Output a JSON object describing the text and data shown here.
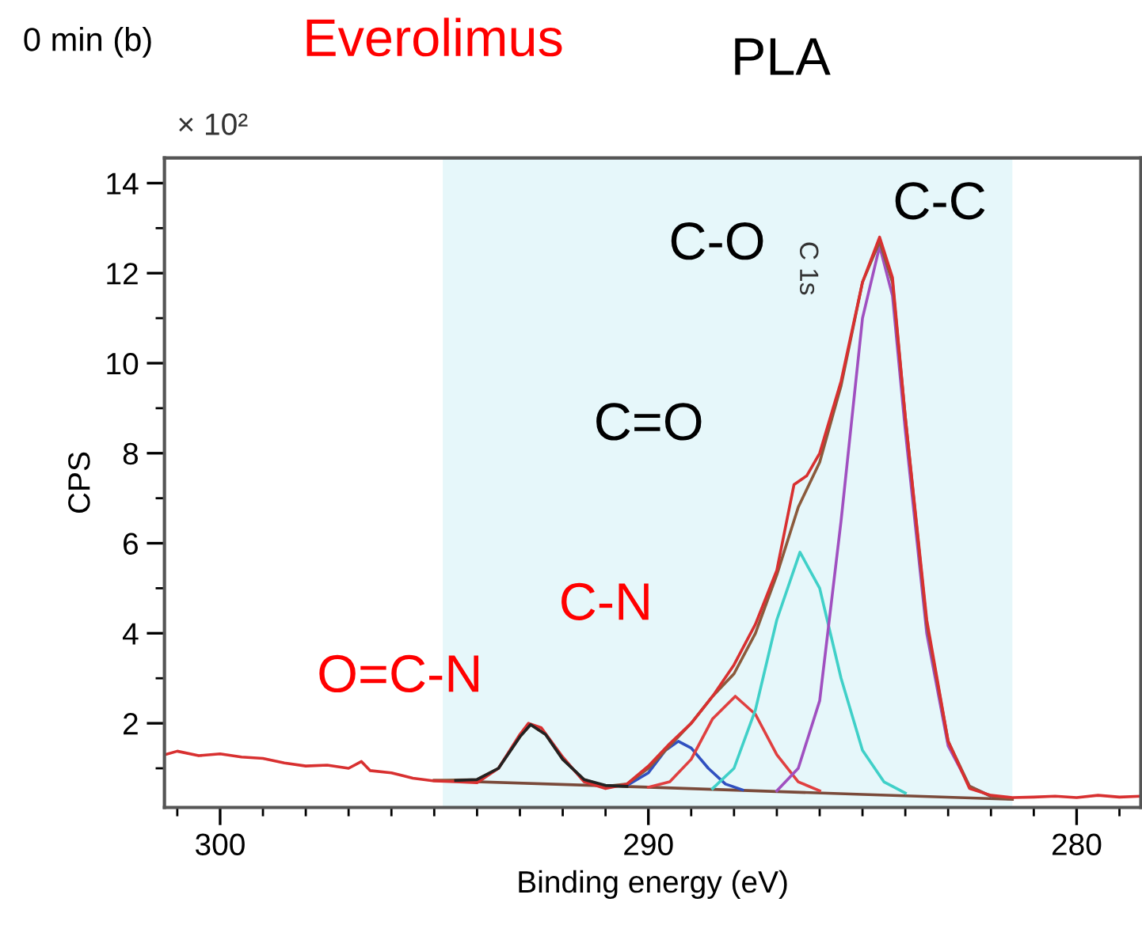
{
  "chart_data": {
    "type": "line",
    "title": "0 min (b)",
    "xlabel": "Binding energy (eV)",
    "ylabel": "CPS",
    "annotations": [
      "Everolimus",
      "PLA",
      "× 10²",
      "C-C",
      "C-O",
      "C 1s",
      "C=O",
      "C-N",
      "O=C-N"
    ],
    "xlim": [
      301.3,
      278.5
    ],
    "ylim": [
      0.13,
      14.56
    ],
    "xticks": [
      {
        "value": 301,
        "label": null
      },
      300,
      {
        "value": 299,
        "label": null
      },
      {
        "value": 298,
        "label": null
      },
      {
        "value": 297,
        "label": null
      },
      {
        "value": 296,
        "label": null
      },
      {
        "value": 295,
        "label": null
      },
      {
        "value": 294,
        "label": null
      },
      {
        "value": 293,
        "label": null
      },
      {
        "value": 292,
        "label": null
      },
      {
        "value": 291,
        "label": null
      },
      290,
      {
        "value": 289,
        "label": null
      },
      {
        "value": 288,
        "label": null
      },
      {
        "value": 287,
        "label": null
      },
      {
        "value": 286,
        "label": null
      },
      {
        "value": 285,
        "label": null
      },
      {
        "value": 284,
        "label": null
      },
      {
        "value": 283,
        "label": null
      },
      {
        "value": 282,
        "label": null
      },
      {
        "value": 281,
        "label": null
      },
      280,
      {
        "value": 279,
        "label": null
      }
    ],
    "yticks": [
      {
        "value": 1,
        "label": null
      },
      2,
      {
        "value": 3,
        "label": null
      },
      4,
      {
        "value": 5,
        "label": null
      },
      6,
      {
        "value": 7,
        "label": null
      },
      8,
      {
        "value": 9,
        "label": null
      },
      10,
      {
        "value": 11,
        "label": null
      },
      12,
      {
        "value": 13,
        "label": null
      },
      14
    ],
    "bands": [
      {
        "axis": "x",
        "from": 294.8,
        "to": 281.5,
        "color": "#e6f7fa"
      }
    ],
    "grid": false,
    "marker": "none",
    "line_style": "solid",
    "series": [
      {
        "color": "#7a4a3a",
        "x": [
          295,
          290,
          285,
          281.5
        ],
        "values": [
          0.73,
          0.58,
          0.42,
          0.31
        ]
      },
      {
        "color": "#3050c0",
        "x": [
          291,
          290.5,
          290,
          289.6,
          289.3,
          289,
          288.6,
          288.2,
          287.8
        ],
        "values": [
          0.6,
          0.62,
          0.9,
          1.4,
          1.6,
          1.45,
          1.0,
          0.65,
          0.52
        ]
      },
      {
        "color": "#e04040",
        "x": [
          290,
          289.5,
          289,
          288.5,
          287.97,
          287.5,
          287,
          286.5,
          286
        ],
        "values": [
          0.58,
          0.7,
          1.2,
          2.1,
          2.6,
          2.2,
          1.3,
          0.7,
          0.5
        ]
      },
      {
        "color": "#40d0c8",
        "x": [
          288.5,
          288,
          287.5,
          287,
          286.46,
          286,
          285.5,
          285,
          284.5,
          284
        ],
        "values": [
          0.55,
          1.0,
          2.3,
          4.3,
          5.8,
          5.0,
          3.0,
          1.4,
          0.7,
          0.45
        ]
      },
      {
        "color": "#a050c0",
        "x": [
          287,
          286.5,
          286,
          285.5,
          285,
          284.6,
          284.3,
          284,
          283.5,
          283,
          282.5,
          282
        ],
        "values": [
          0.5,
          1.0,
          2.5,
          6.5,
          11.0,
          12.6,
          11.5,
          8.5,
          4.0,
          1.5,
          0.6,
          0.38
        ]
      },
      {
        "color": "#8b5a3c",
        "x": [
          295,
          294,
          293.5,
          293,
          292.75,
          292.4,
          292,
          291.5,
          291,
          290.5,
          290,
          289.5,
          289,
          288.5,
          288,
          287.5,
          287,
          286.5,
          286,
          285.5,
          285,
          284.6,
          284.3,
          284,
          283.5,
          283,
          282.5,
          282,
          281.5
        ],
        "values": [
          0.73,
          0.75,
          1.0,
          1.7,
          1.97,
          1.75,
          1.2,
          0.75,
          0.6,
          0.65,
          1.0,
          1.5,
          2.0,
          2.6,
          3.1,
          4.0,
          5.3,
          6.8,
          7.8,
          9.5,
          11.8,
          12.7,
          11.8,
          8.8,
          4.2,
          1.6,
          0.6,
          0.38,
          0.33
        ]
      },
      {
        "color": "#d83030",
        "x": [
          301.3,
          301,
          300.5,
          300,
          299.5,
          299,
          298.5,
          298,
          297.5,
          297,
          296.7,
          296.5,
          296,
          295.5,
          295,
          294.5,
          294,
          293.5,
          293,
          292.8,
          292.5,
          292,
          291.5,
          291,
          290.5,
          290,
          289.5,
          289,
          288.5,
          288,
          287.5,
          287,
          286.6,
          286.3,
          286,
          285.5,
          285,
          284.6,
          284.3,
          284,
          283.5,
          283,
          282.5,
          282,
          281.5,
          281,
          280.5,
          280,
          279.5,
          279,
          278.5
        ],
        "values": [
          1.3,
          1.38,
          1.28,
          1.32,
          1.25,
          1.22,
          1.12,
          1.05,
          1.07,
          1.0,
          1.15,
          0.95,
          0.9,
          0.78,
          0.72,
          0.7,
          0.68,
          1.0,
          1.75,
          2.0,
          1.9,
          1.25,
          0.7,
          0.55,
          0.65,
          1.05,
          1.55,
          2.0,
          2.6,
          3.3,
          4.2,
          5.4,
          7.3,
          7.5,
          8.0,
          9.6,
          11.8,
          12.8,
          11.9,
          8.8,
          4.3,
          1.6,
          0.55,
          0.4,
          0.35,
          0.36,
          0.38,
          0.35,
          0.4,
          0.36,
          0.38
        ]
      },
      {
        "color": "#222222",
        "x": [
          294.5,
          294,
          293.5,
          293,
          292.75,
          292.4,
          292,
          291.5,
          291,
          290.5
        ],
        "values": [
          0.73,
          0.75,
          1.0,
          1.7,
          1.97,
          1.75,
          1.2,
          0.75,
          0.62,
          0.6
        ]
      }
    ]
  }
}
